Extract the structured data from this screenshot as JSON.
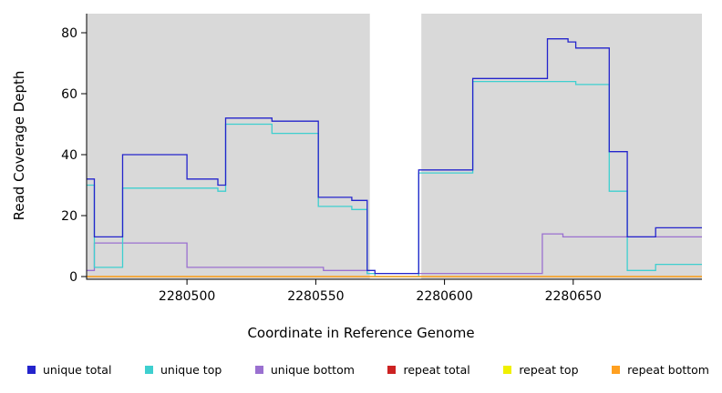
{
  "chart_data": {
    "type": "line",
    "step": true,
    "title": "",
    "xlabel": "Coordinate in Reference Genome",
    "ylabel": "Read Coverage Depth",
    "x_ticks": [
      2280500,
      2280550,
      2280600,
      2280650
    ],
    "y_ticks": [
      0,
      20,
      40,
      60,
      80
    ],
    "xlim": [
      2280461,
      2280700
    ],
    "ylim": [
      0,
      86
    ],
    "grid": false,
    "plot_bg_color": "#d9d9d9",
    "gap_region": {
      "x_start": 2280571,
      "x_end": 2280591,
      "color": "#ffffff"
    },
    "series": [
      {
        "name": "unique bottom",
        "color": "#9a70d0",
        "points": [
          [
            2280461,
            2
          ],
          [
            2280464,
            11
          ],
          [
            2280500,
            3
          ],
          [
            2280553,
            2
          ],
          [
            2280570,
            1
          ],
          [
            2280590,
            1
          ],
          [
            2280638,
            14
          ],
          [
            2280646,
            13
          ]
        ]
      },
      {
        "name": "unique top",
        "color": "#3ecfcf",
        "points": [
          [
            2280461,
            30
          ],
          [
            2280464,
            3
          ],
          [
            2280475,
            29
          ],
          [
            2280512,
            28
          ],
          [
            2280515,
            50
          ],
          [
            2280533,
            47
          ],
          [
            2280551,
            23
          ],
          [
            2280564,
            22
          ],
          [
            2280570,
            1
          ],
          [
            2280573,
            0
          ],
          [
            2280590,
            34
          ],
          [
            2280611,
            64
          ],
          [
            2280651,
            63
          ],
          [
            2280664,
            28
          ],
          [
            2280671,
            2
          ],
          [
            2280682,
            4
          ]
        ]
      },
      {
        "name": "unique total",
        "color": "#2424cc",
        "points": [
          [
            2280461,
            32
          ],
          [
            2280464,
            13
          ],
          [
            2280475,
            40
          ],
          [
            2280500,
            32
          ],
          [
            2280512,
            30
          ],
          [
            2280515,
            52
          ],
          [
            2280533,
            51
          ],
          [
            2280551,
            26
          ],
          [
            2280564,
            25
          ],
          [
            2280570,
            2
          ],
          [
            2280573,
            1
          ],
          [
            2280590,
            35
          ],
          [
            2280611,
            65
          ],
          [
            2280640,
            78
          ],
          [
            2280648,
            77
          ],
          [
            2280651,
            75
          ],
          [
            2280664,
            41
          ],
          [
            2280671,
            13
          ],
          [
            2280682,
            16
          ]
        ]
      },
      {
        "name": "repeat total",
        "color": "#cc2222",
        "points": [
          [
            2280461,
            0
          ]
        ]
      },
      {
        "name": "repeat top",
        "color": "#f0f000",
        "points": [
          [
            2280461,
            0
          ]
        ]
      },
      {
        "name": "repeat bottom",
        "color": "#ffa020",
        "points": [
          [
            2280461,
            0
          ]
        ]
      }
    ],
    "legend": [
      {
        "label": "unique total",
        "color": "#2424cc"
      },
      {
        "label": "unique top",
        "color": "#3ecfcf"
      },
      {
        "label": "unique bottom",
        "color": "#9a70d0"
      },
      {
        "label": "repeat total",
        "color": "#cc2222"
      },
      {
        "label": "repeat top",
        "color": "#f0f000"
      },
      {
        "label": "repeat bottom",
        "color": "#ffa020"
      }
    ],
    "legend_position": "bottom"
  }
}
